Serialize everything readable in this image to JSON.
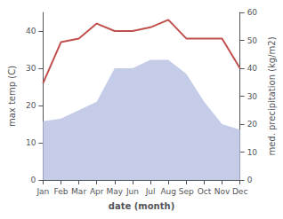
{
  "chart_data": {
    "type": "line",
    "categories": [
      "Jan",
      "Feb",
      "Mar",
      "Apr",
      "May",
      "Jun",
      "Jul",
      "Aug",
      "Sep",
      "Oct",
      "Nov",
      "Dec"
    ],
    "xlabel": "date (month)",
    "ylabel": "max temp (C)",
    "y2label": "med. precipitation (kg/m2)",
    "ylim": [
      0,
      45
    ],
    "yticks": [
      0,
      10,
      20,
      30,
      40
    ],
    "y2lim": [
      0,
      60
    ],
    "y2ticks": [
      0,
      10,
      20,
      30,
      40,
      50,
      60
    ],
    "grid": false,
    "series": [
      {
        "type": "area",
        "axis": "y2",
        "color": "#c5cce8",
        "values": [
          21,
          22,
          25,
          28,
          40,
          40,
          43,
          43,
          38,
          28,
          20,
          18
        ]
      },
      {
        "type": "line",
        "color": "#c0504d",
        "values": [
          26,
          37,
          38,
          42,
          40,
          40,
          41,
          43,
          38,
          38,
          38,
          30
        ]
      }
    ]
  }
}
